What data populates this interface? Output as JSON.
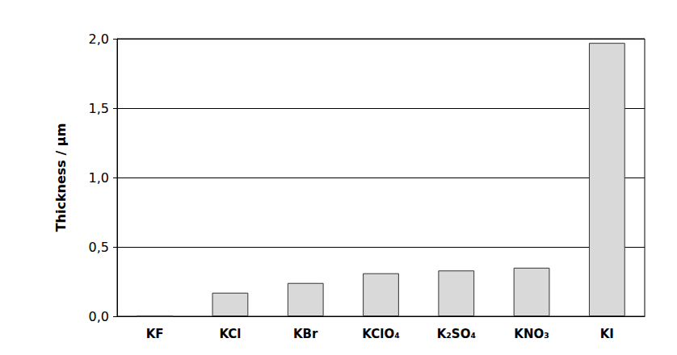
{
  "chart_data": {
    "type": "bar",
    "y_label": "Thickness / µm",
    "categories": [
      "KF",
      "KCl",
      "KBr",
      "KClO₄",
      "K₂SO₄",
      "KNO₃",
      "KI"
    ],
    "values": [
      0.0,
      0.17,
      0.24,
      0.31,
      0.33,
      0.35,
      1.97
    ],
    "color": "#d9d9d9",
    "ylim": [
      0,
      2
    ],
    "yticks": [
      {
        "value": 0,
        "label": "0,0"
      },
      {
        "value": 0.5,
        "label": "0,5"
      },
      {
        "value": 1,
        "label": "1,0"
      },
      {
        "value": 1.5,
        "label": "1,5"
      },
      {
        "value": 2,
        "label": "2,0"
      }
    ],
    "grid": true
  }
}
